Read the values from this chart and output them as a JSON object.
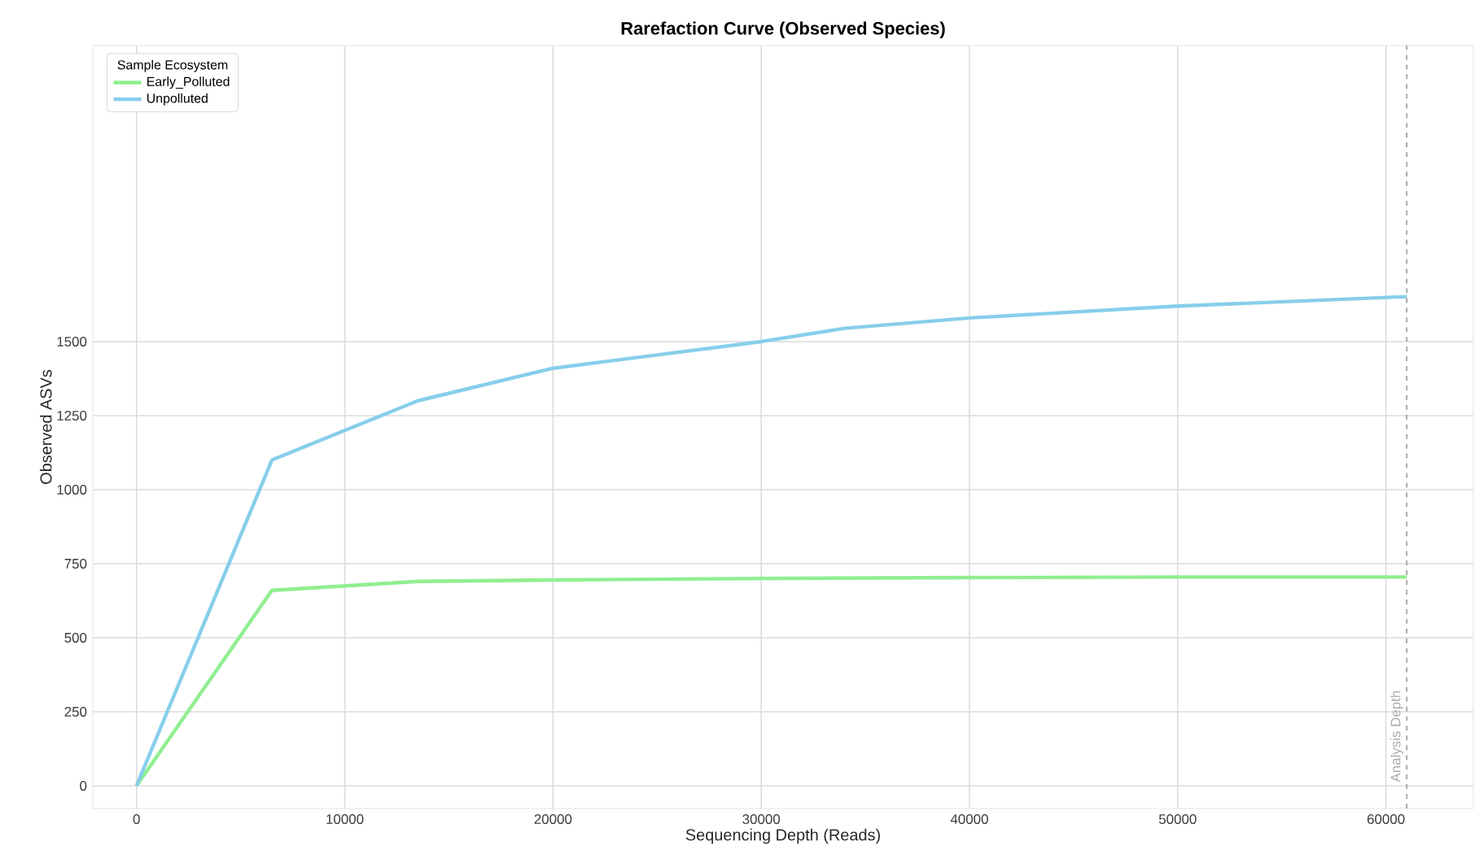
{
  "chart_data": {
    "type": "line",
    "title": "Rarefaction Curve (Observed Species)",
    "xlabel": "Sequencing Depth (Reads)",
    "ylabel": "Observed ASVs",
    "legend_title": "Sample Ecosystem",
    "series": [
      {
        "name": "Early_Polluted",
        "color": "#90ee90",
        "x": [
          0,
          6500,
          13500,
          20000,
          30000,
          40000,
          50000,
          61000
        ],
        "values": [
          0,
          660,
          690,
          695,
          700,
          703,
          705,
          705
        ]
      },
      {
        "name": "Unpolluted",
        "color": "#87ceeb",
        "x": [
          0,
          6500,
          13500,
          20000,
          30000,
          34000,
          40000,
          50000,
          61000
        ],
        "values": [
          0,
          1100,
          1300,
          1410,
          1500,
          1545,
          1580,
          1620,
          1652
        ]
      }
    ],
    "xlim": [
      -2100,
      64200
    ],
    "ylim": [
      -77,
      2500
    ],
    "xticks": [
      0,
      10000,
      20000,
      30000,
      40000,
      50000,
      60000
    ],
    "yticks": [
      0,
      250,
      500,
      750,
      1000,
      1250,
      1500
    ],
    "ref_lines": [
      {
        "axis": "x",
        "value": 61000,
        "label": "Analysis Depth",
        "color": "#aaaaaa",
        "line_style": "dashed"
      }
    ],
    "grid": true,
    "legend": "top left",
    "marker": "none",
    "line_style": "solid"
  }
}
